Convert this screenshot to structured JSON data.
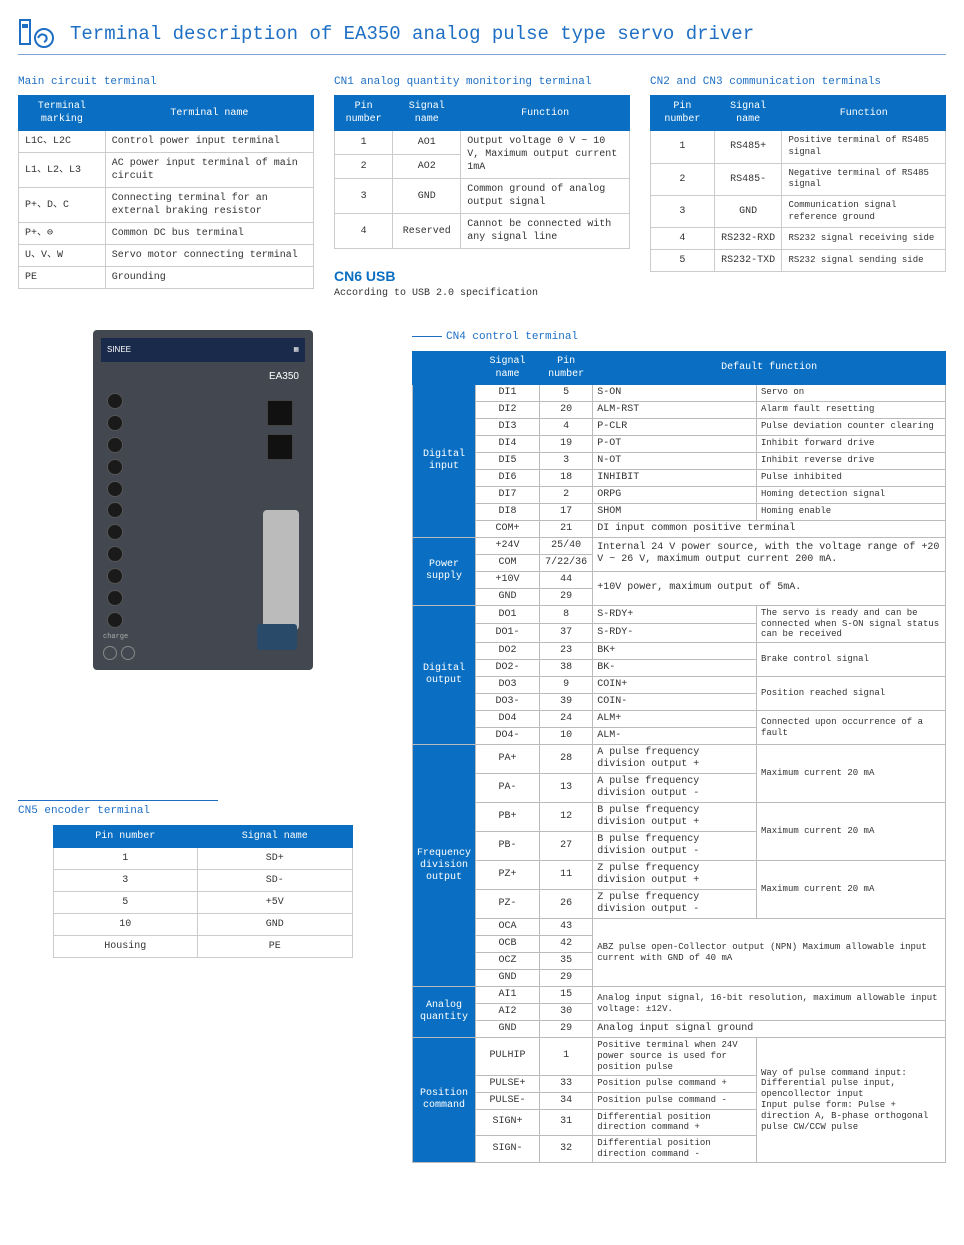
{
  "colors": {
    "brand_blue": "#1e6fc4",
    "header_blue": "#0a6fc2",
    "border_gray": "#ccc",
    "device_body": "#434850"
  },
  "title": "Terminal description of EA350 analog pulse type servo driver",
  "main_circuit": {
    "label": "Main circuit terminal",
    "headers": [
      "Terminal marking",
      "Terminal name"
    ],
    "rows": [
      [
        "L1C、L2C",
        "Control power input terminal"
      ],
      [
        "L1、L2、L3",
        "AC power input terminal of main circuit"
      ],
      [
        "P+、D、C",
        "Connecting terminal for an external braking resistor"
      ],
      [
        "P+、⊖",
        "Common DC bus terminal"
      ],
      [
        "U、V、W",
        "Servo motor connecting terminal"
      ],
      [
        "PE",
        "Grounding"
      ]
    ]
  },
  "cn1": {
    "label": "CN1 analog quantity monitoring terminal",
    "headers": [
      "Pin number",
      "Signal name",
      "Function"
    ],
    "rows": [
      {
        "pin": "1",
        "sig": "AO1",
        "func": "Output voltage 0 V ~ 10 V, Maximum output current 1mA",
        "merge": true
      },
      {
        "pin": "2",
        "sig": "AO2",
        "func": ""
      },
      {
        "pin": "3",
        "sig": "GND",
        "func": "Common ground of analog output signal"
      },
      {
        "pin": "4",
        "sig": "Reserved",
        "func": "Cannot be connected with any signal line"
      }
    ]
  },
  "cn2": {
    "label": "CN2 and CN3 communication terminals",
    "headers": [
      "Pin number",
      "Signal name",
      "Function"
    ],
    "rows": [
      [
        "1",
        "RS485+",
        "Positive terminal of RS485 signal"
      ],
      [
        "2",
        "RS485-",
        "Negative terminal of RS485  signal"
      ],
      [
        "3",
        "GND",
        "Communication signal reference ground"
      ],
      [
        "4",
        "RS232-RXD",
        "RS232 signal receiving side"
      ],
      [
        "5",
        "RS232-TXD",
        "RS232 signal sending side"
      ]
    ]
  },
  "cn6": {
    "title": "CN6 USB",
    "desc": "According to USB 2.0 specification"
  },
  "cn5": {
    "label": "CN5 encoder terminal",
    "headers": [
      "Pin number",
      "Signal name"
    ],
    "rows": [
      [
        "1",
        "SD+"
      ],
      [
        "3",
        "SD-"
      ],
      [
        "5",
        "+5V"
      ],
      [
        "10",
        "GND"
      ],
      [
        "Housing",
        "PE"
      ]
    ]
  },
  "cn4": {
    "label": "CN4 control terminal",
    "headers": [
      "",
      "Signal name",
      "Pin number",
      "Default function",
      ""
    ],
    "groups": [
      {
        "cat": "Digital input",
        "rows": [
          [
            "DI1",
            "5",
            "S-ON",
            "Servo on"
          ],
          [
            "DI2",
            "20",
            "ALM-RST",
            "Alarm fault resetting"
          ],
          [
            "DI3",
            "4",
            "P-CLR",
            "Pulse deviation counter clearing"
          ],
          [
            "DI4",
            "19",
            "P-OT",
            "Inhibit forward drive"
          ],
          [
            "DI5",
            "3",
            "N-OT",
            "Inhibit reverse drive"
          ],
          [
            "DI6",
            "18",
            "INHIBIT",
            "Pulse inhibited"
          ],
          [
            "DI7",
            "2",
            "ORPG",
            "Homing detection signal"
          ],
          [
            "DI8",
            "17",
            "SHOM",
            "Homing enable"
          ],
          [
            "COM+",
            "21",
            "DI input common positive terminal",
            ""
          ]
        ]
      },
      {
        "cat": "Power supply",
        "rows": [
          [
            "+24V",
            "25/40",
            "Internal 24 V power source, with the voltage range of +20 V ~ 26 V, maximum output current 200 mA.",
            ""
          ],
          [
            "COM",
            "7/22/36",
            "",
            ""
          ],
          [
            "+10V",
            "44",
            "+10V power, maximum output of 5mA.",
            ""
          ],
          [
            "GND",
            "29",
            "",
            ""
          ]
        ]
      },
      {
        "cat": "Digital output",
        "rows": [
          [
            "DO1",
            "8",
            "S-RDY+",
            "The servo is ready and can be connected when S-ON signal status can be received"
          ],
          [
            "DO1-",
            "37",
            "S-RDY-",
            ""
          ],
          [
            "DO2",
            "23",
            "BK+",
            "Brake control signal"
          ],
          [
            "DO2-",
            "38",
            "BK-",
            ""
          ],
          [
            "DO3",
            "9",
            "COIN+",
            "Position reached signal"
          ],
          [
            "DO3-",
            "39",
            "COIN-",
            ""
          ],
          [
            "DO4",
            "24",
            "ALM+",
            "Connected upon occurrence of a fault"
          ],
          [
            "DO4-",
            "10",
            "ALM-",
            ""
          ]
        ]
      },
      {
        "cat": "Frequency division output",
        "rows": [
          [
            "PA+",
            "28",
            "A pulse frequency division output +",
            "Maximum current 20 mA"
          ],
          [
            "PA-",
            "13",
            "A pulse frequency division output -",
            ""
          ],
          [
            "PB+",
            "12",
            "B pulse frequency division output +",
            "Maximum current 20 mA"
          ],
          [
            "PB-",
            "27",
            "B pulse frequency division output -",
            ""
          ],
          [
            "PZ+",
            "11",
            "Z pulse frequency division output +",
            "Maximum current 20 mA"
          ],
          [
            "PZ-",
            "26",
            "Z pulse frequency division output -",
            ""
          ],
          [
            "OCA",
            "43",
            "ABZ pulse open-Collector output (NPN) Maximum allowable input current with GND of 40 mA",
            ""
          ],
          [
            "OCB",
            "42",
            "",
            ""
          ],
          [
            "OCZ",
            "35",
            "",
            ""
          ],
          [
            "GND",
            "29",
            "",
            ""
          ]
        ]
      },
      {
        "cat": "Analog quantity",
        "rows": [
          [
            "AI1",
            "15",
            "Analog input signal, 16-bit resolution, maximum allowable input voltage: ±12V.",
            ""
          ],
          [
            "AI2",
            "30",
            "",
            ""
          ],
          [
            "GND",
            "29",
            "Analog input signal ground",
            ""
          ]
        ]
      },
      {
        "cat": "Position command",
        "rows": [
          [
            "PULHIP",
            "1",
            "Positive terminal when 24V power source is used for position pulse",
            "Way of pulse command input: Differential pulse input, opencollector input\nInput pulse form: Pulse + direction A, B-phase orthogonal pulse CW/CCW pulse"
          ],
          [
            "PULSE+",
            "33",
            "Position pulse command +",
            ""
          ],
          [
            "PULSE-",
            "34",
            "Position pulse command -",
            ""
          ],
          [
            "SIGN+",
            "31",
            "Differential position direction command +",
            ""
          ],
          [
            "SIGN-",
            "32",
            "Differential position direction command -",
            ""
          ]
        ]
      }
    ]
  },
  "device": {
    "brand": "SINEE",
    "model": "EA350",
    "charge": "charge"
  }
}
